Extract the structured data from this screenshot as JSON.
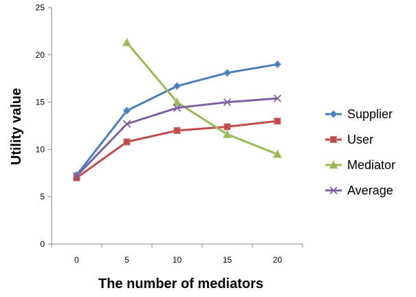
{
  "chart_data": {
    "type": "line",
    "xlabel": "The number of mediators",
    "ylabel": "Utility value",
    "x": [
      0,
      5,
      10,
      15,
      20
    ],
    "ylim": [
      0,
      25
    ],
    "yticks": [
      0,
      5,
      10,
      15,
      20,
      25
    ],
    "grid": false,
    "legend": "right",
    "series": [
      {
        "name": "Supplier",
        "color": "#4a7ebb",
        "marker": "diamond",
        "points": [
          [
            0,
            7.3
          ],
          [
            5,
            14.1
          ],
          [
            10,
            16.7
          ],
          [
            15,
            18.1
          ],
          [
            20,
            19.0
          ]
        ]
      },
      {
        "name": "User",
        "color": "#be4b48",
        "marker": "square",
        "points": [
          [
            0,
            7.0
          ],
          [
            5,
            10.8
          ],
          [
            10,
            12.0
          ],
          [
            15,
            12.4
          ],
          [
            20,
            13.0
          ]
        ]
      },
      {
        "name": "Mediator",
        "color": "#98b954",
        "marker": "triangle",
        "points": [
          [
            5,
            21.3
          ],
          [
            10,
            15.0
          ],
          [
            15,
            11.6
          ],
          [
            20,
            9.5
          ]
        ]
      },
      {
        "name": "Average",
        "color": "#7d60a0",
        "marker": "x",
        "points": [
          [
            0,
            7.2
          ],
          [
            5,
            12.7
          ],
          [
            10,
            14.4
          ],
          [
            15,
            15.0
          ],
          [
            20,
            15.4
          ]
        ]
      }
    ]
  }
}
